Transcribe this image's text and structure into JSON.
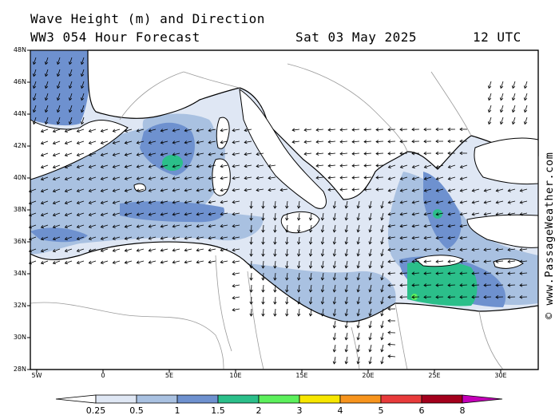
{
  "title": {
    "line1": "Wave Height (m) and Direction",
    "line2": "WW3 054 Hour Forecast",
    "date": "Sat 03 May 2025",
    "time": "12 UTC"
  },
  "credit": "© www.PassageWeather.com",
  "axes": {
    "lat_labels": [
      "48N",
      "46N",
      "44N",
      "42N",
      "40N",
      "38N",
      "36N",
      "34N",
      "32N",
      "30N",
      "28N"
    ],
    "lon_labels": [
      "5W",
      "0",
      "5E",
      "10E",
      "15E",
      "20E",
      "25E",
      "30E"
    ]
  },
  "colorbar": {
    "labels": [
      "0.25",
      "0.5",
      "1",
      "1.5",
      "2",
      "3",
      "4",
      "5",
      "6",
      "8"
    ],
    "colors": [
      "#ffffff",
      "#dfe7f4",
      "#a9c1e1",
      "#6e91cf",
      "#2bbf8a",
      "#5cf05c",
      "#f7e600",
      "#f7941d",
      "#e83b3b",
      "#a3001c",
      "#c400b8"
    ]
  },
  "palette": {
    "land": "#ffffff",
    "sea_low": "#dfe7f4",
    "sea_mid": "#a9c1e1",
    "sea_high": "#6e91cf",
    "sea_2m": "#2bbf8a",
    "sea_3m": "#5cf05c"
  }
}
